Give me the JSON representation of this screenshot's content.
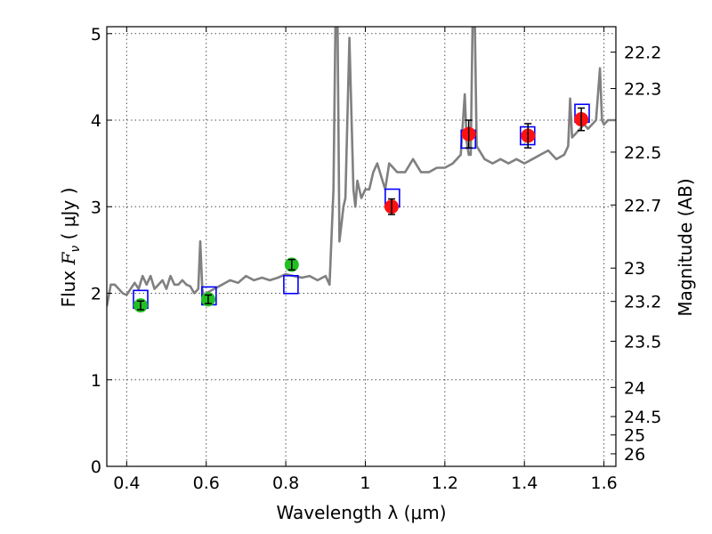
{
  "chart_data": {
    "type": "scatter",
    "title": "",
    "xlabel": "Wavelength  λ (μm)",
    "ylabel": "Flux  F_ν  ( μJy )",
    "ylabel_parts": {
      "pre": "Flux  ",
      "var": "F",
      "sub": "ν",
      "post": "  ( μJy )"
    },
    "y2label": "Magnitude (AB)",
    "xlim": [
      0.35,
      1.63
    ],
    "ylim": [
      0,
      5.08
    ],
    "grid": true,
    "x_ticks": [
      0.4,
      0.6,
      0.8,
      1.0,
      1.2,
      1.4,
      1.6
    ],
    "x_tick_labels": [
      "0.4",
      "0.6",
      "0.8",
      "1",
      "1.2",
      "1.4",
      "1.6"
    ],
    "y_ticks": [
      0,
      1,
      2,
      3,
      4,
      5
    ],
    "y_tick_labels": [
      "0",
      "1",
      "2",
      "3",
      "4",
      "5"
    ],
    "mag_ticks": [
      22.2,
      22.3,
      22.5,
      22.7,
      23,
      23.2,
      23.5,
      24,
      24.5,
      25,
      26
    ],
    "mag_tick_labels": [
      "22.2",
      "22.3",
      "22.5",
      "22.7",
      "23",
      "23.2",
      "23.5",
      "24",
      "24.5",
      "25",
      "26"
    ],
    "colors": {
      "spectrum": "#808080",
      "model_box": "#0000ff",
      "optical": "#22c022",
      "nir": "#ff1111",
      "errorbar": "#000000",
      "grid": "#555555"
    },
    "series": [
      {
        "kind": "spectrum",
        "x": [
          0.35,
          0.36,
          0.37,
          0.38,
          0.39,
          0.4,
          0.41,
          0.42,
          0.43,
          0.44,
          0.45,
          0.46,
          0.47,
          0.48,
          0.49,
          0.5,
          0.51,
          0.52,
          0.53,
          0.54,
          0.55,
          0.56,
          0.57,
          0.58,
          0.585,
          0.59,
          0.595,
          0.6,
          0.62,
          0.64,
          0.66,
          0.68,
          0.7,
          0.72,
          0.74,
          0.76,
          0.78,
          0.8,
          0.82,
          0.84,
          0.86,
          0.88,
          0.9,
          0.91,
          0.92,
          0.925,
          0.93,
          0.935,
          0.94,
          0.945,
          0.95,
          0.96,
          0.97,
          0.975,
          0.98,
          0.985,
          0.99,
          1.0,
          1.01,
          1.02,
          1.03,
          1.04,
          1.05,
          1.06,
          1.07,
          1.08,
          1.1,
          1.12,
          1.14,
          1.16,
          1.18,
          1.2,
          1.22,
          1.24,
          1.25,
          1.255,
          1.26,
          1.265,
          1.27,
          1.275,
          1.28,
          1.3,
          1.32,
          1.34,
          1.36,
          1.38,
          1.4,
          1.42,
          1.44,
          1.46,
          1.48,
          1.5,
          1.51,
          1.515,
          1.52,
          1.53,
          1.54,
          1.55,
          1.56,
          1.57,
          1.58,
          1.59,
          1.595,
          1.6,
          1.61,
          1.62,
          1.63
        ],
        "y": [
          1.85,
          2.1,
          2.1,
          2.05,
          2.0,
          1.98,
          2.05,
          2.12,
          2.05,
          2.2,
          2.1,
          2.2,
          2.05,
          2.1,
          2.15,
          2.05,
          2.2,
          2.1,
          2.1,
          2.15,
          2.1,
          2.08,
          2.0,
          2.05,
          2.6,
          2.05,
          1.95,
          2.0,
          2.05,
          2.1,
          2.15,
          2.12,
          2.2,
          2.15,
          2.18,
          2.15,
          2.18,
          2.22,
          2.2,
          2.18,
          2.2,
          2.15,
          2.2,
          2.1,
          3.2,
          5.2,
          5.2,
          2.6,
          2.8,
          3.0,
          3.1,
          4.95,
          3.2,
          3.0,
          3.3,
          3.2,
          3.1,
          3.2,
          3.2,
          3.4,
          3.5,
          3.35,
          3.2,
          3.5,
          3.45,
          3.4,
          3.4,
          3.55,
          3.4,
          3.4,
          3.45,
          3.45,
          3.5,
          3.6,
          4.3,
          3.75,
          3.6,
          3.6,
          5.2,
          5.2,
          3.7,
          3.55,
          3.5,
          3.55,
          3.5,
          3.55,
          3.5,
          3.55,
          3.6,
          3.65,
          3.55,
          3.6,
          3.7,
          4.25,
          3.8,
          3.85,
          3.9,
          3.95,
          3.9,
          3.95,
          4.0,
          4.6,
          4.0,
          3.95,
          4.0,
          4.0,
          4.0
        ]
      },
      {
        "kind": "model_boxes",
        "x": [
          0.435,
          0.607,
          0.813,
          1.068,
          1.259,
          1.408,
          1.545
        ],
        "y": [
          1.93,
          1.97,
          2.1,
          3.1,
          3.78,
          3.82,
          4.08
        ]
      },
      {
        "kind": "observed_optical",
        "x": [
          0.435,
          0.605,
          0.815
        ],
        "y": [
          1.86,
          1.93,
          2.33
        ],
        "err": [
          0.05,
          0.05,
          0.06
        ]
      },
      {
        "kind": "observed_nir",
        "x": [
          1.066,
          1.26,
          1.409,
          1.543
        ],
        "y": [
          3.0,
          3.84,
          3.82,
          4.01
        ],
        "err": [
          0.09,
          0.16,
          0.14,
          0.13
        ]
      }
    ]
  }
}
